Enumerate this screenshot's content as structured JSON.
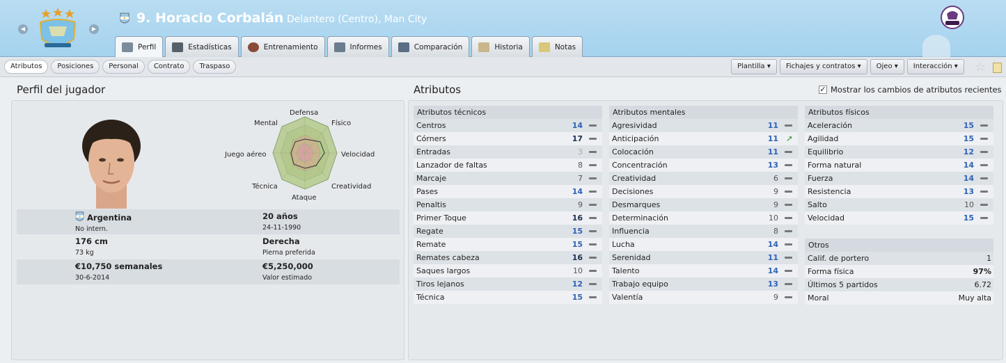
{
  "header": {
    "player_name": "9. Horacio Corbalán",
    "position_club": "Delantero (Centro), Man City",
    "tabs": [
      {
        "label": "Perfil",
        "icon": "profile-card-icon"
      },
      {
        "label": "Estadísticas",
        "icon": "bar-stats-icon"
      },
      {
        "label": "Entrenamiento",
        "icon": "football-icon"
      },
      {
        "label": "Informes",
        "icon": "report-icon"
      },
      {
        "label": "Comparación",
        "icon": "compare-icon"
      },
      {
        "label": "Historia",
        "icon": "history-icon"
      },
      {
        "label": "Notas",
        "icon": "notes-icon"
      }
    ]
  },
  "subnav": [
    "Atributos",
    "Posiciones",
    "Personal",
    "Contrato",
    "Traspaso"
  ],
  "menus": [
    "Plantilla",
    "Fichajes y contratos",
    "Ojeo",
    "Interacción"
  ],
  "profile": {
    "heading": "Perfil del jugador",
    "radar_labels": {
      "defensa": "Defensa",
      "fisico": "Físico",
      "velocidad": "Velocidad",
      "creatividad": "Creatividad",
      "ataque": "Ataque",
      "tecnica": "Técnica",
      "juego_aereo": "Juego aéreo",
      "mental": "Mental"
    },
    "nationality": "Argentina",
    "intl": "No intern.",
    "age": "20 años",
    "dob": "24-11-1990",
    "height": "176 cm",
    "weight": "73 kg",
    "foot": "Derecha",
    "foot_label": "Pierna preferida",
    "wage": "€10,750 semanales",
    "contract_end": "30-6-2014",
    "value": "€5,250,000",
    "value_label": "Valor estimado"
  },
  "attributes": {
    "heading": "Atributos",
    "show_changes_label": "Mostrar los cambios de atributos recientes",
    "show_changes_checked": true,
    "tecnicos": {
      "title": "Atributos técnicos",
      "rows": [
        {
          "name": "Centros",
          "value": "14"
        },
        {
          "name": "Córners",
          "value": "17"
        },
        {
          "name": "Entradas",
          "value": "3"
        },
        {
          "name": "Lanzador de faltas",
          "value": "8"
        },
        {
          "name": "Marcaje",
          "value": "7"
        },
        {
          "name": "Pases",
          "value": "14"
        },
        {
          "name": "Penaltis",
          "value": "9"
        },
        {
          "name": "Primer Toque",
          "value": "16"
        },
        {
          "name": "Regate",
          "value": "15"
        },
        {
          "name": "Remate",
          "value": "15"
        },
        {
          "name": "Remates cabeza",
          "value": "16"
        },
        {
          "name": "Saques largos",
          "value": "10"
        },
        {
          "name": "Tiros lejanos",
          "value": "12"
        },
        {
          "name": "Técnica",
          "value": "15"
        }
      ]
    },
    "mentales": {
      "title": "Atributos mentales",
      "rows": [
        {
          "name": "Agresividad",
          "value": "11"
        },
        {
          "name": "Anticipación",
          "value": "11"
        },
        {
          "name": "Colocación",
          "value": "11"
        },
        {
          "name": "Concentración",
          "value": "13"
        },
        {
          "name": "Creatividad",
          "value": "6"
        },
        {
          "name": "Decisiones",
          "value": "9"
        },
        {
          "name": "Desmarques",
          "value": "9"
        },
        {
          "name": "Determinación",
          "value": "10"
        },
        {
          "name": "Influencia",
          "value": "8"
        },
        {
          "name": "Lucha",
          "value": "14"
        },
        {
          "name": "Serenidad",
          "value": "11"
        },
        {
          "name": "Talento",
          "value": "14"
        },
        {
          "name": "Trabajo equipo",
          "value": "13"
        },
        {
          "name": "Valentía",
          "value": "9"
        }
      ]
    },
    "fisicos": {
      "title": "Atributos físicos",
      "rows": [
        {
          "name": "Aceleración",
          "value": "15"
        },
        {
          "name": "Agilidad",
          "value": "15"
        },
        {
          "name": "Equilibrio",
          "value": "12"
        },
        {
          "name": "Forma natural",
          "value": "14"
        },
        {
          "name": "Fuerza",
          "value": "14"
        },
        {
          "name": "Resistencia",
          "value": "13"
        },
        {
          "name": "Salto",
          "value": "10"
        },
        {
          "name": "Velocidad",
          "value": "15"
        }
      ]
    },
    "otros": {
      "title": "Otros",
      "rows": [
        {
          "name": "Calif. de portero",
          "value": "1"
        },
        {
          "name": "Forma física",
          "value": "97%"
        },
        {
          "name": "Últimos 5 partidos",
          "value": "6.72"
        },
        {
          "name": "Moral",
          "value": "Muy alta"
        }
      ]
    }
  },
  "colors": {
    "header_bg": "#a8d4ef",
    "value_blue": "#2f62b7",
    "value_dark": "#1c2e52",
    "improve_green": "#3c9a36"
  }
}
